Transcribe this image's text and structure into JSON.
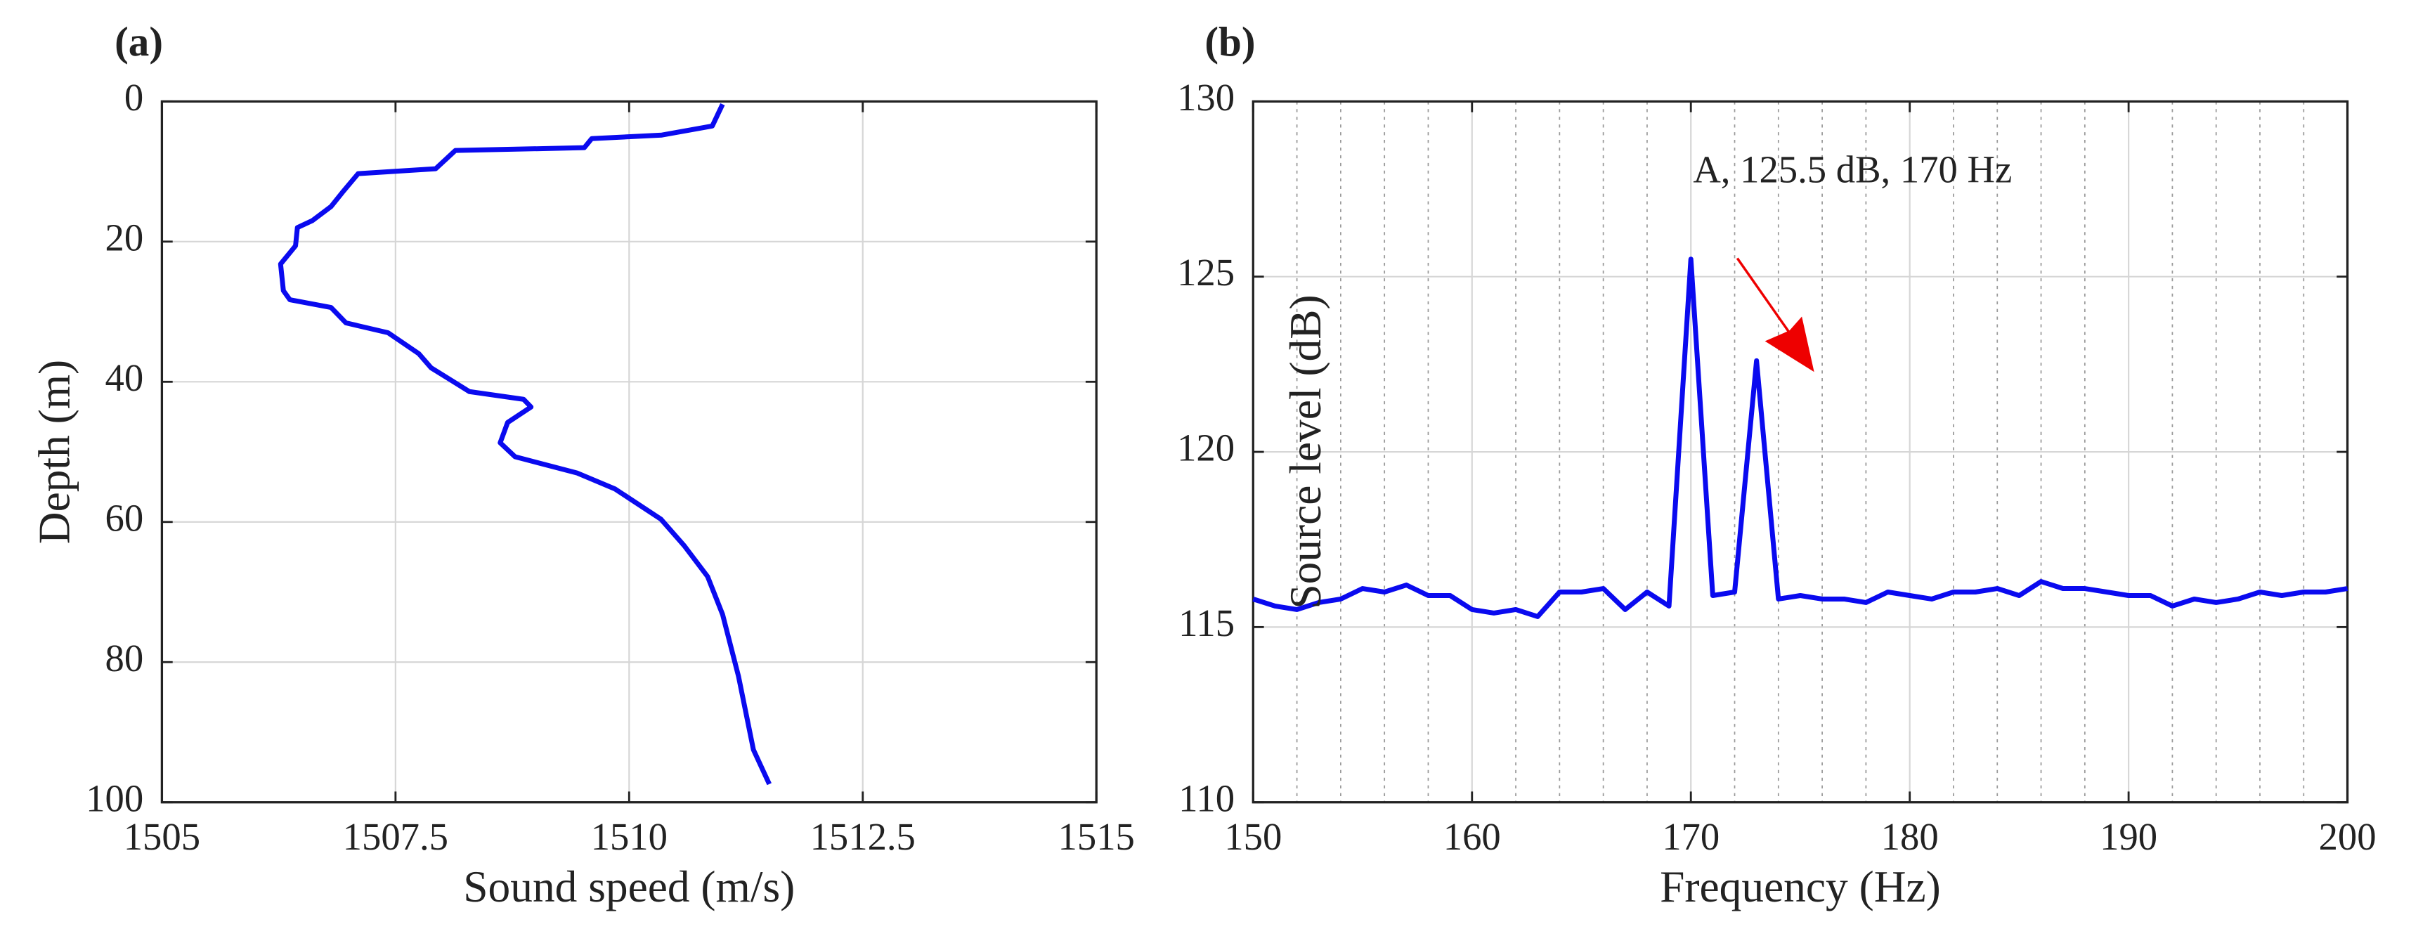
{
  "chart_data": [
    {
      "type": "line",
      "panel_label": "(a)",
      "xlabel": "Sound speed (m/s)",
      "ylabel": "Depth (m)",
      "color": "#0a0aef",
      "grid": true,
      "xlim": [
        1505,
        1515
      ],
      "xticks": [
        1505,
        1507.5,
        1510,
        1512.5,
        1515
      ],
      "ylim": [
        100,
        0
      ],
      "yticks": [
        0,
        20,
        40,
        60,
        80,
        100
      ],
      "x": [
        1511.0,
        1510.89,
        1510.35,
        1509.6,
        1509.52,
        1508.14,
        1507.93,
        1507.1,
        1506.93,
        1506.81,
        1506.61,
        1506.45,
        1506.43,
        1506.27,
        1506.3,
        1506.37,
        1506.81,
        1506.97,
        1507.42,
        1507.75,
        1507.88,
        1508.29,
        1508.87,
        1508.95,
        1508.7,
        1508.62,
        1508.78,
        1509.44,
        1509.85,
        1510.34,
        1510.59,
        1510.84,
        1511.0,
        1511.17,
        1511.33,
        1511.5
      ],
      "values": [
        0.4,
        3.5,
        4.8,
        5.3,
        6.6,
        7,
        9.6,
        10.3,
        13,
        15,
        17,
        18,
        20.6,
        23.2,
        27,
        28.3,
        29.4,
        31.6,
        33,
        36,
        38,
        41.4,
        42.5,
        43.6,
        45.8,
        48.7,
        50.7,
        53,
        55.3,
        59.6,
        63.4,
        67.8,
        73.2,
        82,
        92.5,
        97.4
      ]
    },
    {
      "type": "line",
      "panel_label": "(b)",
      "xlabel": "Frequency (Hz)",
      "ylabel": "Source level (dB)",
      "color": "#0a0aef",
      "grid": true,
      "annotation": "A, 125.5 dB, 170 Hz",
      "xlim": [
        150,
        200
      ],
      "xticks": [
        150,
        160,
        170,
        180,
        190,
        200
      ],
      "xminorticks": [
        152,
        154,
        156,
        158,
        162,
        164,
        166,
        168,
        172,
        174,
        176,
        178,
        182,
        184,
        186,
        188,
        192,
        194,
        196,
        198
      ],
      "ylim": [
        110,
        130
      ],
      "yticks": [
        110,
        115,
        120,
        125,
        130
      ],
      "x": [
        150,
        151,
        152,
        153,
        154,
        155,
        156,
        157,
        158,
        159,
        160,
        161,
        162,
        163,
        164,
        165,
        166,
        167,
        168,
        169,
        170,
        171,
        172,
        173,
        174,
        175,
        176,
        177,
        178,
        179,
        180,
        181,
        182,
        183,
        184,
        185,
        186,
        187,
        188,
        189,
        190,
        191,
        192,
        193,
        194,
        195,
        196,
        197,
        198,
        199,
        200
      ],
      "values": [
        115.8,
        115.6,
        115.5,
        115.7,
        115.8,
        116.1,
        116.0,
        116.2,
        115.9,
        115.9,
        115.5,
        115.4,
        115.5,
        115.3,
        116.0,
        116.0,
        116.1,
        115.5,
        116.0,
        115.6,
        125.5,
        115.9,
        116.0,
        122.6,
        115.8,
        115.9,
        115.8,
        115.8,
        115.7,
        116.0,
        115.9,
        115.8,
        116.0,
        116.0,
        116.1,
        115.9,
        116.3,
        116.1,
        116.1,
        116.0,
        115.9,
        115.9,
        115.6,
        115.8,
        115.7,
        115.8,
        116.0,
        115.9,
        116.0,
        116.0,
        116.1
      ]
    }
  ]
}
